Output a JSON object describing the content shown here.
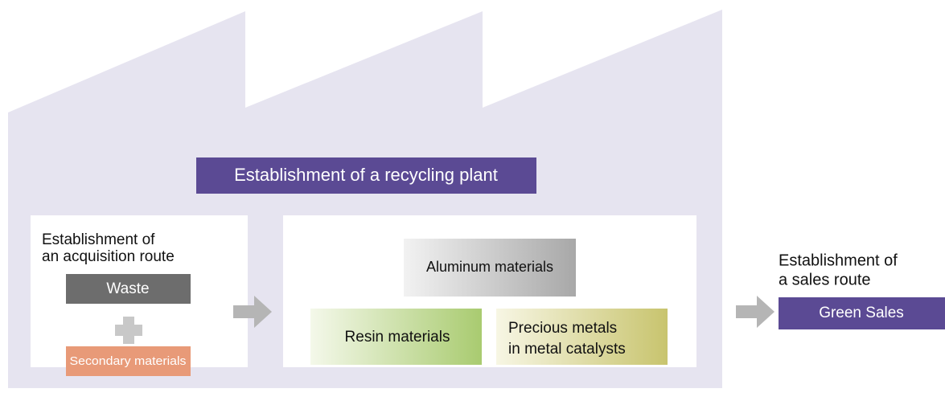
{
  "plant": {
    "title": "Establishment of a recycling plant"
  },
  "acquisition": {
    "heading": [
      "Establishment of",
      "an acquisition route"
    ],
    "items": [
      "Waste",
      "Secondary materials"
    ]
  },
  "materials": [
    "Aluminum materials",
    "Resin materials",
    [
      "Precious metals",
      "in metal catalysts"
    ]
  ],
  "sales": {
    "heading": [
      "Establishment of",
      "a sales route"
    ],
    "label": "Green Sales"
  }
}
